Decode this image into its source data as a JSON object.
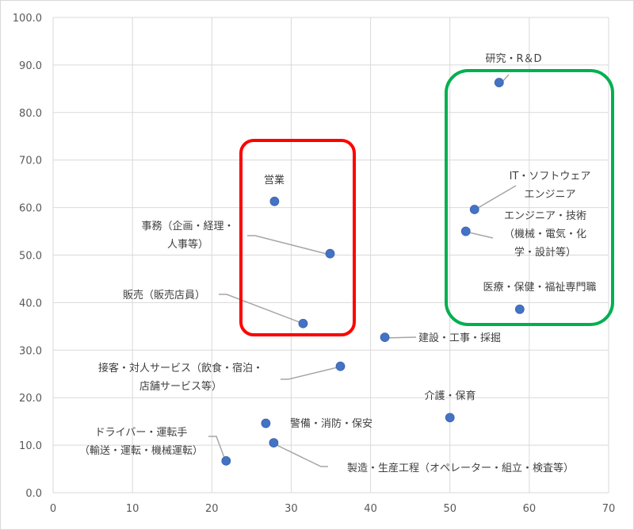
{
  "chart_data": {
    "type": "scatter",
    "title": "",
    "xlabel": "",
    "ylabel": "",
    "xlim": [
      0,
      70
    ],
    "ylim": [
      0,
      100
    ],
    "xticks": [
      "0",
      "10",
      "20",
      "30",
      "40",
      "50",
      "60",
      "70"
    ],
    "yticks": [
      "0.0",
      "10.0",
      "20.0",
      "30.0",
      "40.0",
      "50.0",
      "60.0",
      "70.0",
      "80.0",
      "90.0",
      "100.0"
    ],
    "grid": "vertical and horizontal",
    "marker_color": "#4472C4",
    "points": [
      {
        "label": "研究・R＆D",
        "x": 56.2,
        "y": 86.3
      },
      {
        "label": "IT・ソフトウェア\nエンジニア",
        "x": 53.1,
        "y": 59.6
      },
      {
        "label": "エンジニア・技術\n（機械・電気・化\n学・設計等）",
        "x": 52.0,
        "y": 55.0
      },
      {
        "label": "医療・保健・福祉専門職",
        "x": 58.8,
        "y": 38.6
      },
      {
        "label": "営業",
        "x": 27.9,
        "y": 61.3
      },
      {
        "label": "事務（企画・経理・\n人事等）",
        "x": 34.9,
        "y": 50.3
      },
      {
        "label": "販売（販売店員）",
        "x": 31.5,
        "y": 35.6
      },
      {
        "label": "建設・工事・採掘",
        "x": 41.8,
        "y": 32.7
      },
      {
        "label": "接客・対人サービス（飲食・宿泊・\n店舗サービス等）",
        "x": 36.2,
        "y": 26.6
      },
      {
        "label": "介護・保育",
        "x": 50.0,
        "y": 15.8
      },
      {
        "label": "警備・消防・保安",
        "x": 26.8,
        "y": 14.6
      },
      {
        "label": "ドライバー・運転手\n（輸送・運転・機械運転）",
        "x": 21.8,
        "y": 6.7
      },
      {
        "label": "製造・生産工程（オペレーター・組立・検査等）",
        "x": 27.8,
        "y": 10.5
      }
    ],
    "highlight_boxes": [
      {
        "color": "#FF0000"
      },
      {
        "color": "#00B050"
      }
    ]
  }
}
